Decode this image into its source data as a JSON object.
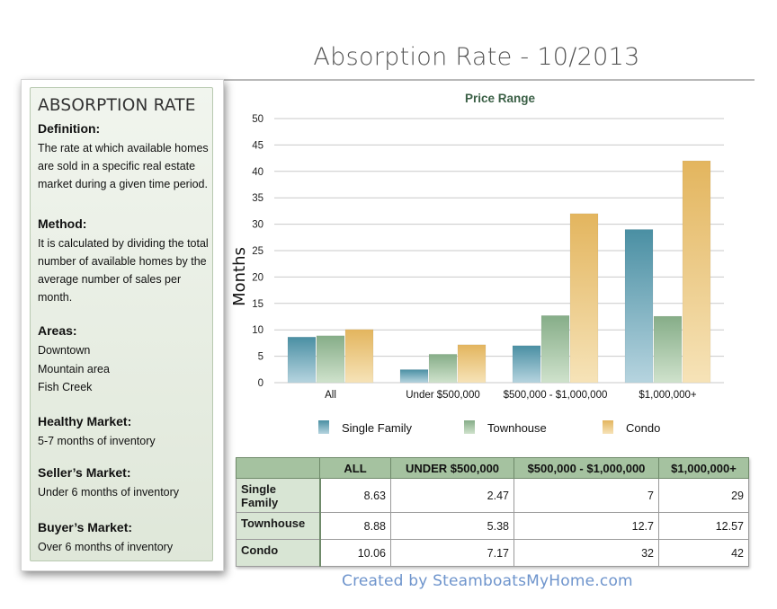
{
  "page": {
    "title": "Absorption Rate - 10/2013",
    "credit": "Created by SteamboatsMyHome.com"
  },
  "sidebar": {
    "heading": "ABSORPTION RATE",
    "definition_label": "Definition:",
    "definition_text": "The rate at which available homes are sold in a specific real estate market during a given time period.",
    "method_label": "Method:",
    "method_text": "It is calculated by dividing the total number of available homes by the average number of sales per month.",
    "areas_label": "Areas:",
    "areas": [
      "Downtown",
      "Mountain area",
      "Fish Creek"
    ],
    "healthy_label": "Healthy Market:",
    "healthy_text": "5-7 months of inventory",
    "seller_label": "Seller’s Market:",
    "seller_text": "Under 6 months of inventory",
    "buyer_label": "Buyer’s Market:",
    "buyer_text": "Over 6 months of inventory"
  },
  "chart_data": {
    "type": "bar",
    "title": "Price Range",
    "ylabel": "Months",
    "xlabel": "",
    "ylim": [
      0,
      50
    ],
    "yticks": [
      0,
      5,
      10,
      15,
      20,
      25,
      30,
      35,
      40,
      45,
      50
    ],
    "grid": true,
    "legend_position": "bottom",
    "categories": [
      "All",
      "Under $500,000",
      "$500,000 - $1,000,000",
      "$1,000,000+"
    ],
    "series": [
      {
        "name": "Single Family",
        "values": [
          8.63,
          2.47,
          7,
          29
        ],
        "color_top": "#4a8fa3",
        "color_bottom": "#b6d4df"
      },
      {
        "name": "Townhouse",
        "values": [
          8.88,
          5.38,
          12.7,
          12.57
        ],
        "color_top": "#86ad88",
        "color_bottom": "#cfe2cc"
      },
      {
        "name": "Condo",
        "values": [
          10.06,
          7.17,
          32,
          42
        ],
        "color_top": "#e3b55e",
        "color_bottom": "#f6e3b8"
      }
    ]
  },
  "table": {
    "headers": [
      "",
      "ALL",
      "UNDER $500,000",
      "$500,000 - $1,000,000",
      "$1,000,000+"
    ],
    "rows": [
      {
        "label": "Single Family",
        "values": [
          "8.63",
          "2.47",
          "7",
          "29"
        ]
      },
      {
        "label": "Townhouse",
        "values": [
          "8.88",
          "5.38",
          "12.7",
          "12.57"
        ]
      },
      {
        "label": "Condo",
        "values": [
          "10.06",
          "7.17",
          "32",
          "42"
        ]
      }
    ]
  }
}
